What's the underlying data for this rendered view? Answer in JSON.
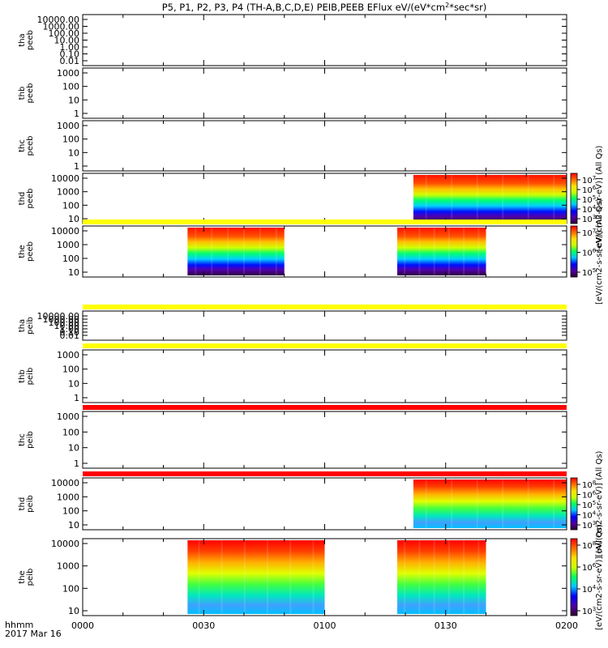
{
  "title": "P5, P1, P2, P3, P4 (TH-A,B,C,D,E) PEIB,PEEB EFlux eV/(eV*cm^2*sec*sr)",
  "title_parts": {
    "pre": "P5, P1, P2, P3, P4 (TH-A,B,C,D,E) PEIB,PEEB EFlux eV/(eV*cm",
    "sup": "2",
    "post": "*sec*sr)"
  },
  "x_axis": {
    "format_label": "hhmm",
    "date_label": "2017 Mar 16",
    "ticks": [
      "0000",
      "0030",
      "0100",
      "0130",
      "0200"
    ],
    "tick_minutes": [
      0,
      30,
      60,
      90,
      120
    ],
    "range_minutes": [
      0,
      120
    ]
  },
  "colorbars": [
    {
      "panel_index": 3,
      "label": "[eV/(cm2-s-sr-eV)] (All Qs)",
      "ticks": [
        {
          "b": "10",
          "e": "7"
        },
        {
          "b": "10",
          "e": "6"
        },
        {
          "b": "10",
          "e": "5"
        },
        {
          "b": "10",
          "e": "4"
        },
        {
          "b": "10",
          "e": "3"
        }
      ]
    },
    {
      "panel_index": 4,
      "label": "[eV/(cm2-s-sr-eV)] (All Qs)",
      "ticks": [
        {
          "b": "10",
          "e": "7"
        },
        {
          "b": "10",
          "e": "6"
        },
        {
          "b": "10",
          "e": "5"
        }
      ]
    },
    {
      "panel_index": 8,
      "label": "[eV/(cm2-s-sr-eV)] (All Qs)",
      "ticks": [
        {
          "b": "10",
          "e": "8"
        },
        {
          "b": "10",
          "e": "6"
        },
        {
          "b": "10",
          "e": "5"
        },
        {
          "b": "10",
          "e": "4"
        },
        {
          "b": "10",
          "e": "3"
        }
      ]
    },
    {
      "panel_index": 9,
      "label": "[eV/(cm2-s-sr-eV)] (All Qs)",
      "ticks": [
        {
          "b": "10",
          "e": "8"
        },
        {
          "b": "10",
          "e": "6"
        },
        {
          "b": "10",
          "e": "4"
        },
        {
          "b": "10",
          "e": "3"
        }
      ]
    }
  ],
  "chart_data": {
    "type": "heatmap",
    "x_unit": "UT hhmm",
    "y_scale": "log",
    "colormap": "rainbow",
    "panels": [
      {
        "label": [
          "tha",
          "peeb"
        ],
        "yticks": [
          "10000.00",
          "1000.00",
          "100.00",
          "10.00",
          "1.00",
          "0.10",
          "0.01"
        ],
        "data_blocks": [],
        "status_bar": null
      },
      {
        "label": [
          "thb",
          "peeb"
        ],
        "yticks": [
          "1000",
          "100",
          "10",
          "1"
        ],
        "data_blocks": [],
        "status_bar": null
      },
      {
        "label": [
          "thc",
          "peeb"
        ],
        "yticks": [
          "1000",
          "100",
          "10",
          "1"
        ],
        "data_blocks": [],
        "status_bar": null
      },
      {
        "label": [
          "thd",
          "peeb"
        ],
        "yticks": [
          "10000",
          "1000",
          "100",
          "10"
        ],
        "data_blocks": [
          {
            "start_min": 82,
            "end_min": 120
          }
        ],
        "status_bar": null
      },
      {
        "label": [
          "the",
          "peeb"
        ],
        "yticks": [
          "10000",
          "1000",
          "100",
          "10"
        ],
        "data_blocks": [
          {
            "start_min": 26,
            "end_min": 50
          },
          {
            "start_min": 78,
            "end_min": 100
          }
        ],
        "status_bar": "yellow"
      },
      {
        "label": [
          "tha",
          "peib"
        ],
        "yticks": [
          "10000.00",
          "1000.00",
          "100.00",
          "10.00",
          "1.00",
          "0.10",
          "0.01"
        ],
        "data_blocks": [],
        "status_bar": "yellow"
      },
      {
        "label": [
          "thb",
          "peib"
        ],
        "yticks": [
          "1000",
          "100",
          "10",
          "1"
        ],
        "data_blocks": [],
        "status_bar": "yellow"
      },
      {
        "label": [
          "thc",
          "peib"
        ],
        "yticks": [
          "1000",
          "100",
          "10",
          "1"
        ],
        "data_blocks": [],
        "status_bar": "red"
      },
      {
        "label": [
          "thd",
          "peib"
        ],
        "yticks": [
          "10000",
          "1000",
          "100",
          "10"
        ],
        "data_blocks": [
          {
            "start_min": 82,
            "end_min": 120
          }
        ],
        "status_bar": "red"
      },
      {
        "label": [
          "the",
          "peib"
        ],
        "yticks": [
          "10000",
          "1000",
          "100",
          "10"
        ],
        "data_blocks": [
          {
            "start_min": 26,
            "end_min": 60
          },
          {
            "start_min": 78,
            "end_min": 100
          }
        ],
        "status_bar": null
      }
    ]
  },
  "colors": {
    "yellow_bar": "#ffff00",
    "red_bar": "#ff0000"
  }
}
